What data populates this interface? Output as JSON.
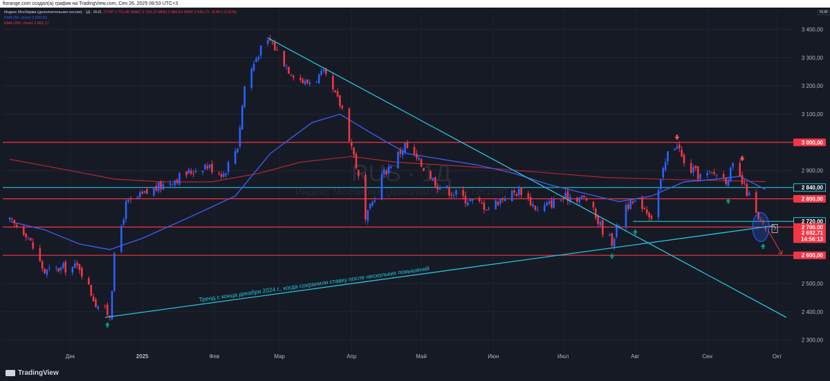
{
  "header": {
    "caption": "fiorange.com создал(a) график на TradingView.com, Сен 26, 2025 08:53 UTC+3"
  },
  "legend": {
    "title": "Индекс Мосбиржи (дополнительная сессия) · 1Д · RUS",
    "ohlc": "ОТКР 2 701,86  МАКС 2 703,23  МИН 2 686,64  ЗАКР 2 692,71  −8,48 (−0,31%)",
    "ema50": "EMA (50, close)  2 832,93",
    "ema200": "EMA (200, close)  2 861,17"
  },
  "symbol_chip": "RUB",
  "watermark": {
    "symbol": "RUS · 1Д",
    "name": "Индекс Мосбиржи (дополнительная сессия)"
  },
  "annotation": "Тренд с конца декабря 2024 г., когда сохранили ставку после нескольких повышений",
  "question_mark": "?",
  "brand": "TradingView",
  "colors": {
    "up": "#2962FF",
    "down": "#F23645",
    "ema50": "#3F5BE8",
    "ema200": "#B22833",
    "trend": "#26C6DA",
    "level": "#F23645",
    "background": "#161A25"
  },
  "chart_data": {
    "type": "candlestick",
    "timeframe": "1D",
    "ylim": [
      2260,
      3470
    ],
    "y_ticks": [
      "3 400,00",
      "3 300,00",
      "3 200,00",
      "3 100,00",
      "3 000,00",
      "2 900,00",
      "2 800,00",
      "2 700,00",
      "2 600,00",
      "2 500,00",
      "2 400,00",
      "2 300,00"
    ],
    "x_labels": [
      "Дек",
      "2025",
      "Фев",
      "Мар",
      "Апр",
      "Май",
      "Июн",
      "Июл",
      "Авг",
      "Сен",
      "Окт"
    ],
    "close_path": [
      {
        "date": "2024-11-05",
        "close": 2720
      },
      {
        "date": "2024-11-12",
        "close": 2680
      },
      {
        "date": "2024-11-20",
        "close": 2540
      },
      {
        "date": "2024-11-28",
        "close": 2555
      },
      {
        "date": "2024-12-05",
        "close": 2560
      },
      {
        "date": "2024-12-12",
        "close": 2430
      },
      {
        "date": "2024-12-18",
        "close": 2390
      },
      {
        "date": "2024-12-20",
        "close": 2590
      },
      {
        "date": "2024-12-25",
        "close": 2780
      },
      {
        "date": "2025-01-05",
        "close": 2830
      },
      {
        "date": "2025-01-15",
        "close": 2870
      },
      {
        "date": "2025-01-28",
        "close": 2920
      },
      {
        "date": "2025-02-05",
        "close": 2890
      },
      {
        "date": "2025-02-11",
        "close": 2990
      },
      {
        "date": "2025-02-14",
        "close": 3200
      },
      {
        "date": "2025-02-20",
        "close": 3320
      },
      {
        "date": "2025-02-25",
        "close": 3360
      },
      {
        "date": "2025-03-05",
        "close": 3260
      },
      {
        "date": "2025-03-12",
        "close": 3210
      },
      {
        "date": "2025-03-20",
        "close": 3240
      },
      {
        "date": "2025-03-28",
        "close": 3120
      },
      {
        "date": "2025-04-03",
        "close": 2920
      },
      {
        "date": "2025-04-07",
        "close": 2720
      },
      {
        "date": "2025-04-14",
        "close": 2880
      },
      {
        "date": "2025-04-24",
        "close": 2990
      },
      {
        "date": "2025-05-01",
        "close": 2920
      },
      {
        "date": "2025-05-08",
        "close": 2850
      },
      {
        "date": "2025-05-20",
        "close": 2800
      },
      {
        "date": "2025-05-30",
        "close": 2770
      },
      {
        "date": "2025-06-06",
        "close": 2810
      },
      {
        "date": "2025-06-13",
        "close": 2830
      },
      {
        "date": "2025-06-20",
        "close": 2760
      },
      {
        "date": "2025-06-27",
        "close": 2790
      },
      {
        "date": "2025-07-04",
        "close": 2810
      },
      {
        "date": "2025-07-11",
        "close": 2800
      },
      {
        "date": "2025-07-18",
        "close": 2690
      },
      {
        "date": "2025-07-22",
        "close": 2650
      },
      {
        "date": "2025-07-28",
        "close": 2780
      },
      {
        "date": "2025-08-04",
        "close": 2780
      },
      {
        "date": "2025-08-08",
        "close": 2740
      },
      {
        "date": "2025-08-12",
        "close": 2860
      },
      {
        "date": "2025-08-15",
        "close": 2960
      },
      {
        "date": "2025-08-19",
        "close": 3000
      },
      {
        "date": "2025-08-22",
        "close": 2920
      },
      {
        "date": "2025-08-29",
        "close": 2880
      },
      {
        "date": "2025-09-05",
        "close": 2890
      },
      {
        "date": "2025-09-09",
        "close": 2870
      },
      {
        "date": "2025-09-12",
        "close": 2910
      },
      {
        "date": "2025-09-15",
        "close": 2870
      },
      {
        "date": "2025-09-19",
        "close": 2810
      },
      {
        "date": "2025-09-23",
        "close": 2720
      },
      {
        "date": "2025-09-26",
        "close": 2692.71
      }
    ],
    "ema50_path": [
      {
        "date": "2024-11-05",
        "value": 2720
      },
      {
        "date": "2024-11-20",
        "value": 2690
      },
      {
        "date": "2024-12-05",
        "value": 2640
      },
      {
        "date": "2024-12-18",
        "value": 2620
      },
      {
        "date": "2025-01-01",
        "value": 2660
      },
      {
        "date": "2025-01-20",
        "value": 2730
      },
      {
        "date": "2025-02-10",
        "value": 2810
      },
      {
        "date": "2025-02-25",
        "value": 2960
      },
      {
        "date": "2025-03-15",
        "value": 3070
      },
      {
        "date": "2025-03-27",
        "value": 3100
      },
      {
        "date": "2025-04-10",
        "value": 3030
      },
      {
        "date": "2025-04-25",
        "value": 2960
      },
      {
        "date": "2025-05-10",
        "value": 2940
      },
      {
        "date": "2025-05-25",
        "value": 2920
      },
      {
        "date": "2025-06-10",
        "value": 2890
      },
      {
        "date": "2025-06-25",
        "value": 2850
      },
      {
        "date": "2025-07-10",
        "value": 2820
      },
      {
        "date": "2025-07-25",
        "value": 2790
      },
      {
        "date": "2025-08-08",
        "value": 2810
      },
      {
        "date": "2025-08-22",
        "value": 2860
      },
      {
        "date": "2025-09-05",
        "value": 2870
      },
      {
        "date": "2025-09-15",
        "value": 2880
      },
      {
        "date": "2025-09-26",
        "value": 2832.93
      }
    ],
    "ema200_path": [
      {
        "date": "2024-11-05",
        "value": 2940
      },
      {
        "date": "2024-12-01",
        "value": 2900
      },
      {
        "date": "2024-12-20",
        "value": 2870
      },
      {
        "date": "2025-01-10",
        "value": 2860
      },
      {
        "date": "2025-01-31",
        "value": 2860
      },
      {
        "date": "2025-02-20",
        "value": 2890
      },
      {
        "date": "2025-03-10",
        "value": 2930
      },
      {
        "date": "2025-04-01",
        "value": 2950
      },
      {
        "date": "2025-04-20",
        "value": 2930
      },
      {
        "date": "2025-05-20",
        "value": 2915
      },
      {
        "date": "2025-06-20",
        "value": 2895
      },
      {
        "date": "2025-07-20",
        "value": 2875
      },
      {
        "date": "2025-08-20",
        "value": 2868
      },
      {
        "date": "2025-09-26",
        "value": 2861.17
      }
    ],
    "levels": [
      {
        "price": 3000,
        "label": "3 000,00",
        "color": "#F23645"
      },
      {
        "price": 2840,
        "label": "2 840,00",
        "color": "#26C6DA"
      },
      {
        "price": 2800,
        "label": "2 800,00",
        "color": "#F23645"
      },
      {
        "price": 2720,
        "label": "2 720,00",
        "color": "#26C6DA"
      },
      {
        "price": 2700,
        "label": "2 700,00",
        "color": "#F23645"
      },
      {
        "price": 2600,
        "label": "2 600,00",
        "color": "#F23645"
      }
    ],
    "last_price": {
      "price": 2692.71,
      "label": "2 692,71",
      "countdown": "14:56:13"
    },
    "trendlines": [
      {
        "from": {
          "date": "2024-12-16",
          "price": 2380
        },
        "to": {
          "date": "2025-09-30",
          "price": 2705
        }
      },
      {
        "from": {
          "date": "2025-02-24",
          "price": 3370
        },
        "to": {
          "date": "2025-10-05",
          "price": 2380
        }
      }
    ]
  }
}
